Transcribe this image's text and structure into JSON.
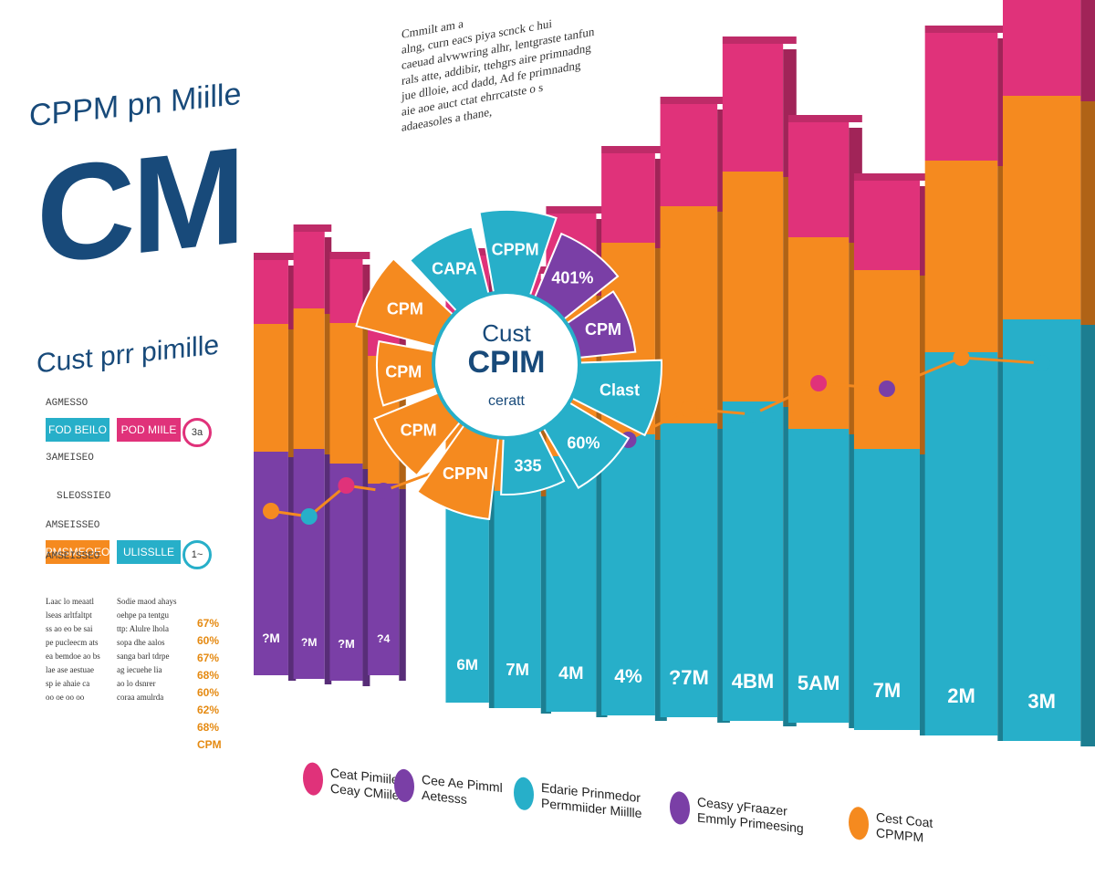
{
  "colors": {
    "orange": "#f58a1f",
    "teal": "#27afc9",
    "magenta": "#e0327a",
    "purple": "#7a3fa6",
    "navy": "#184a7a"
  },
  "header": {
    "top": "CPPM pn Miille",
    "big": "CM",
    "sub": "Cust prr pimille"
  },
  "blurb": [
    "Cmmilt am a",
    "alng, curn eacs piya scnck c hui",
    "caeuad alvwwring alhr, lentgraste tanfun",
    "rals atte, addibir, ttehgrs aire primnadng",
    "jue dlloie, acd dadd, Ad fe primnadng",
    "aie aoe auct ctat ehrrcatste o s",
    "adaeasoles a thane,"
  ],
  "stats": [
    {
      "text": "AGMESSO"
    },
    {
      "box": "FOD BEILO",
      "color": "teal",
      "box2": "POD MIILE",
      "color2": "magenta",
      "tag": "3a"
    },
    {
      "text": "3AMEISEO"
    },
    {
      "text": "SLEOSSIEO"
    },
    {
      "text": "AMSEISSEO"
    },
    {
      "box": "PMSMEOEO",
      "color": "orange",
      "box2": "ULISSLLE",
      "color2": "teal",
      "tag": "1~"
    },
    {
      "text": "AMSEISSEO"
    }
  ],
  "mini_left": [
    "Laac lo meaatl",
    "lseas arltfaltpt",
    "ss ao eo be sai",
    "pe pucleecm ats",
    "ea bemdoe ao bs",
    "lae ase aestuae",
    "sp ie ahaie ca",
    "oo oe oo oo"
  ],
  "mini_right": [
    "Sodie maod ahays",
    "oehpe pa tentgu",
    "ttp: Alulre lhola",
    "sopa dhe aalos",
    "sanga barl tdrpe",
    "ag iecuehe lia",
    "ao lo dsnrer",
    "coraa amulrda"
  ],
  "pct_list": [
    "67%",
    "60%",
    "67%",
    "68%",
    "60%",
    "62%",
    "68%",
    "CPM"
  ],
  "legend": [
    {
      "label": "Ceat Pimiile\nCeay CMiile",
      "color": "magenta"
    },
    {
      "label": "Cee Ae Pimml\nAetesss",
      "color": "purple"
    },
    {
      "label": "Edarie Prinmedor\nPermmiider Miillle",
      "color": "teal"
    },
    {
      "label": "Ceasy yFraazer\nEmmly Primeesing",
      "color": "purple"
    },
    {
      "label": "Cest Coat\nCPMPM",
      "color": "orange"
    }
  ],
  "chart_data": {
    "type": "bar",
    "title": "",
    "xlabel": "",
    "ylabel": "",
    "categories": [
      "?M",
      "?M",
      "?M",
      "?4",
      "6M",
      "7M",
      "4M",
      "4%",
      "?7M",
      "4BM",
      "5AM",
      "7M",
      "2M",
      "3M"
    ],
    "series": [
      {
        "name": "",
        "color": "purple",
        "values": [
          35,
          36,
          34,
          30,
          0,
          0,
          0,
          0,
          0,
          0,
          0,
          0,
          0,
          0
        ]
      },
      {
        "name": "",
        "color": "teal",
        "values": [
          0,
          0,
          0,
          0,
          38,
          34,
          40,
          44,
          46,
          50,
          46,
          44,
          60,
          66
        ]
      },
      {
        "name": "",
        "color": "orange",
        "values": [
          20,
          22,
          22,
          20,
          22,
          24,
          26,
          30,
          34,
          36,
          30,
          28,
          30,
          35
        ]
      },
      {
        "name": "",
        "color": "magenta",
        "values": [
          10,
          12,
          10,
          8,
          10,
          10,
          12,
          14,
          16,
          20,
          18,
          14,
          20,
          22
        ]
      }
    ],
    "ylim": [
      0,
      125
    ],
    "pie": {
      "center_labels": [
        "Cust",
        "CPIM",
        "ceratt"
      ],
      "slices": [
        {
          "label": "CPPM",
          "color": "teal"
        },
        {
          "label": "401%",
          "color": "purple"
        },
        {
          "label": "CPM",
          "color": "purple"
        },
        {
          "label": "Clast",
          "color": "teal"
        },
        {
          "label": "60%",
          "color": "teal"
        },
        {
          "label": "335",
          "color": "teal"
        },
        {
          "label": "CPPN",
          "color": "orange"
        },
        {
          "label": "CPM",
          "color": "orange"
        },
        {
          "label": "CPM",
          "color": "orange"
        },
        {
          "label": "CPM",
          "color": "orange"
        },
        {
          "label": "CAPA",
          "color": "teal"
        }
      ]
    }
  }
}
